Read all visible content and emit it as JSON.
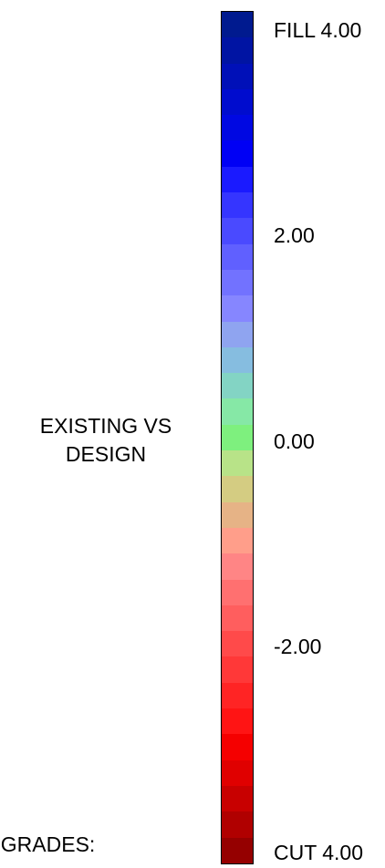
{
  "legend": {
    "title_line1": "EXISTING VS",
    "title_line2": "DESIGN",
    "grades_label": "I GRADES:",
    "tick_labels": {
      "top": "FILL 4.00",
      "upper": "2.00",
      "middle": "0.00",
      "lower": "-2.00",
      "bottom": "CUT 4.00"
    },
    "color_bands": [
      "#001a8f",
      "#0014a3",
      "#0010b8",
      "#000cce",
      "#0008e2",
      "#0000f5",
      "#1a1aff",
      "#3535ff",
      "#4a4aff",
      "#6060ff",
      "#7272ff",
      "#8686ff",
      "#8fa4f0",
      "#86bde0",
      "#83d4c4",
      "#86e8a6",
      "#7ef07e",
      "#b8e388",
      "#d4cc82",
      "#e6b386",
      "#ff9e8a",
      "#ff8585",
      "#ff7070",
      "#ff5e5e",
      "#ff4a4a",
      "#ff3838",
      "#ff2424",
      "#ff1414",
      "#f50000",
      "#e00000",
      "#c80000",
      "#b00000",
      "#950000"
    ]
  }
}
